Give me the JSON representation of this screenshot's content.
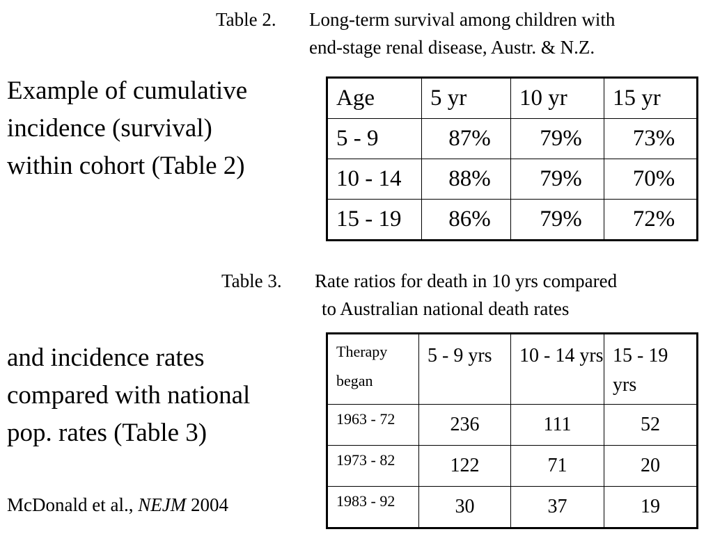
{
  "table2": {
    "number": "Table 2.",
    "title_line1": "Long-term survival among children with",
    "title_line2": "end-stage renal disease, Austr. & N.Z.",
    "headers": [
      "Age",
      "5 yr",
      "10 yr",
      "15 yr"
    ],
    "rows": [
      {
        "age": "5 - 9",
        "values": [
          "87%",
          "79%",
          "73%"
        ]
      },
      {
        "age": "10 - 14",
        "values": [
          "88%",
          "79%",
          "70%"
        ]
      },
      {
        "age": "15 - 19",
        "values": [
          "86%",
          "79%",
          "72%"
        ]
      }
    ]
  },
  "table3": {
    "number": "Table 3.",
    "title_line1": "Rate ratios for death in 10 yrs compared",
    "title_line2": "to Australian national death rates",
    "headers": [
      "Therapy began",
      "5 - 9 yrs",
      "10 - 14 yrs",
      "15 - 19 yrs"
    ],
    "rows": [
      {
        "period": "1963 - 72",
        "values": [
          "236",
          "111",
          "52"
        ]
      },
      {
        "period": "1973 - 82",
        "values": [
          "122",
          "71",
          "20"
        ]
      },
      {
        "period": "1983 - 92",
        "values": [
          "30",
          "37",
          "19"
        ]
      }
    ]
  },
  "side_text": {
    "block1": [
      "Example of cumulative",
      "incidence (survival)",
      "within cohort (Table 2)"
    ],
    "block2": [
      "and incidence rates",
      "compared with national",
      "pop. rates (Table 3)"
    ]
  },
  "citation": {
    "authors": "McDonald et al.,",
    "journal": "NEJM",
    "year": "2004"
  }
}
